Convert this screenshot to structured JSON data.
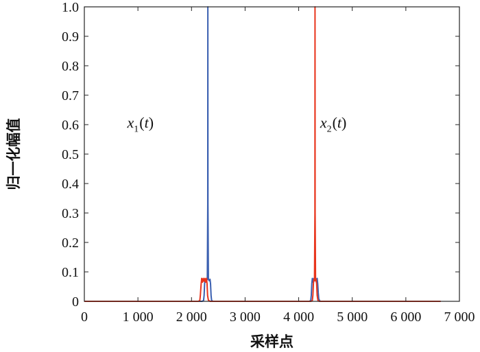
{
  "chart_data": {
    "type": "line",
    "xlabel": "采样点",
    "ylabel": "归一化幅值",
    "xlim": [
      0,
      7000
    ],
    "ylim": [
      0,
      1.0
    ],
    "x_ticks": [
      0,
      1000,
      2000,
      3000,
      4000,
      5000,
      6000,
      7000
    ],
    "x_tick_labels": [
      "0",
      "1 000",
      "2 000",
      "3 000",
      "4 000",
      "5 000",
      "6 000",
      "7 000"
    ],
    "y_ticks": [
      0,
      0.1,
      0.2,
      0.3,
      0.4,
      0.5,
      0.6,
      0.7,
      0.8,
      0.9,
      1.0
    ],
    "y_tick_labels": [
      "0",
      "0.1",
      "0.2",
      "0.3",
      "0.4",
      "0.5",
      "0.6",
      "0.7",
      "0.8",
      "0.9",
      "1.0"
    ],
    "grid": false,
    "series": [
      {
        "color": "#3a5fb0",
        "points": [
          [
            0,
            0
          ],
          [
            2200,
            0
          ],
          [
            2225,
            0.003
          ],
          [
            2235,
            0.02
          ],
          [
            2245,
            0.06
          ],
          [
            2255,
            0.075
          ],
          [
            2280,
            0.07
          ],
          [
            2295,
            0.075
          ],
          [
            2303,
            0.33
          ],
          [
            2305,
            1.0
          ],
          [
            2307,
            0.33
          ],
          [
            2315,
            0.075
          ],
          [
            2330,
            0.07
          ],
          [
            2345,
            0.075
          ],
          [
            2355,
            0.06
          ],
          [
            2365,
            0.02
          ],
          [
            2375,
            0.003
          ],
          [
            2400,
            0
          ],
          [
            4200,
            0
          ],
          [
            4225,
            0.003
          ],
          [
            4235,
            0.02
          ],
          [
            4245,
            0.06
          ],
          [
            4255,
            0.078
          ],
          [
            4270,
            0.065
          ],
          [
            4285,
            0.078
          ],
          [
            4300,
            0.07
          ],
          [
            4315,
            0.078
          ],
          [
            4330,
            0.065
          ],
          [
            4345,
            0.078
          ],
          [
            4355,
            0.06
          ],
          [
            4365,
            0.03
          ],
          [
            4375,
            0.008
          ],
          [
            4400,
            0
          ],
          [
            6650,
            0
          ]
        ]
      },
      {
        "color": "#e8341c",
        "points": [
          [
            0,
            0
          ],
          [
            2130,
            0
          ],
          [
            2155,
            0.003
          ],
          [
            2165,
            0.02
          ],
          [
            2180,
            0.06
          ],
          [
            2190,
            0.078
          ],
          [
            2205,
            0.065
          ],
          [
            2220,
            0.078
          ],
          [
            2235,
            0.068
          ],
          [
            2250,
            0.078
          ],
          [
            2265,
            0.065
          ],
          [
            2280,
            0.078
          ],
          [
            2290,
            0.06
          ],
          [
            2300,
            0.02
          ],
          [
            2315,
            0.004
          ],
          [
            2345,
            0
          ],
          [
            4230,
            0
          ],
          [
            4255,
            0.003
          ],
          [
            4265,
            0.02
          ],
          [
            4275,
            0.06
          ],
          [
            4285,
            0.075
          ],
          [
            4295,
            0.07
          ],
          [
            4303,
            0.3
          ],
          [
            4305,
            1.0
          ],
          [
            4307,
            0.3
          ],
          [
            4315,
            0.07
          ],
          [
            4325,
            0.075
          ],
          [
            4335,
            0.06
          ],
          [
            4345,
            0.02
          ],
          [
            4360,
            0.003
          ],
          [
            4385,
            0
          ],
          [
            6650,
            0
          ]
        ]
      }
    ],
    "annotations": [
      {
        "base": "x",
        "sub": "1",
        "arg": "t",
        "x": 800,
        "y": 0.59
      },
      {
        "base": "x",
        "sub": "2",
        "arg": "t",
        "x": 4400,
        "y": 0.59
      }
    ]
  }
}
